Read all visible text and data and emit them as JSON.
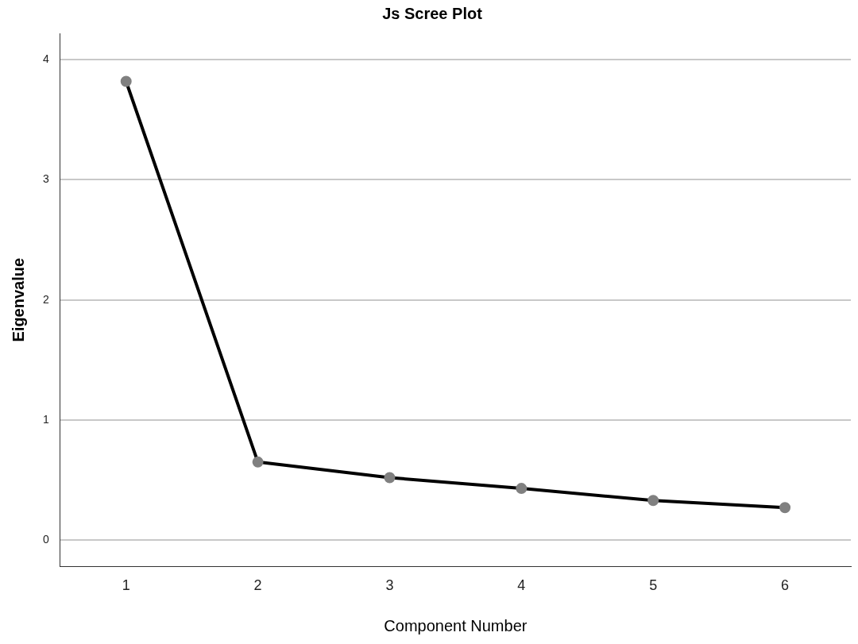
{
  "chart_data": {
    "type": "line",
    "title": "Js Scree Plot",
    "xlabel": "Component Number",
    "ylabel": "Eigenvalue",
    "categories": [
      "1",
      "2",
      "3",
      "4",
      "5",
      "6"
    ],
    "series": [
      {
        "color": "#000000",
        "values": [
          3.82,
          0.65,
          0.52,
          0.43,
          0.33,
          0.27
        ]
      }
    ],
    "ylim": [
      -0.22,
      4.22
    ],
    "yticks": [
      0,
      1,
      2,
      3,
      4
    ],
    "grid": "y",
    "legend": false,
    "marker": "circle",
    "line_style": "solid"
  }
}
